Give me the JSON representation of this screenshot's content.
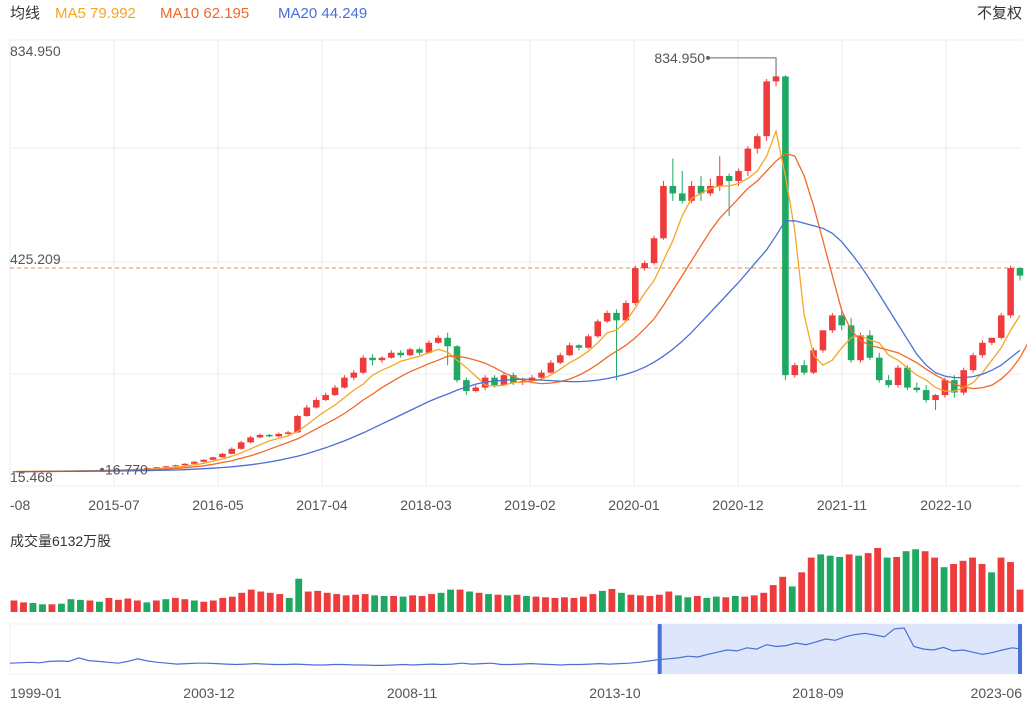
{
  "header": {
    "ma_title": "均线",
    "ma5": {
      "label": "MA5 79.992",
      "color": "#f5a623"
    },
    "ma10": {
      "label": "MA10 62.195",
      "color": "#f06a2a"
    },
    "ma20": {
      "label": "MA20 44.249",
      "color": "#4a70d8"
    },
    "adjust_label": "不复权"
  },
  "colors": {
    "up": "#ef3b3b",
    "down": "#1ea862",
    "ref_line": "#f08a3c",
    "grid": "#eeeeee",
    "nav_fill": "#dde6fb",
    "nav_line": "#4a70d8"
  },
  "chart_data": {
    "type": "candlestick",
    "price_axis": {
      "max_label": "834.950",
      "ref_label": "425.209",
      "ref_value": 425.209,
      "min_label": "15.468",
      "ylim": [
        15.468,
        834.95
      ]
    },
    "annotations": {
      "max_price": "834.950",
      "min_price": "16.770"
    },
    "x_ticks": [
      "-08",
      "2015-07",
      "2016-05",
      "2017-04",
      "2018-03",
      "2019-02",
      "2020-01",
      "2020-12",
      "2021-11",
      "2022-10"
    ],
    "candles": [
      [
        16,
        17,
        16,
        17
      ],
      [
        17,
        16.5,
        16.2,
        17.2
      ],
      [
        16.5,
        17,
        16.4,
        17.3
      ],
      [
        17,
        17.2,
        16.8,
        17.5
      ],
      [
        17.2,
        17.5,
        17,
        17.8
      ],
      [
        17.5,
        17.3,
        17,
        17.9
      ],
      [
        17.3,
        18,
        17.1,
        18.3
      ],
      [
        18,
        18.5,
        17.8,
        18.8
      ],
      [
        18.5,
        18.8,
        18.2,
        19.2
      ],
      [
        18.8,
        19.5,
        18.6,
        19.8
      ],
      [
        19.5,
        19.2,
        18.9,
        19.9
      ],
      [
        19.2,
        20,
        19,
        20.5
      ],
      [
        20,
        21,
        19.8,
        21.5
      ],
      [
        21,
        22,
        20.8,
        22.5
      ],
      [
        22,
        23.5,
        21.8,
        24
      ],
      [
        23.5,
        25,
        23,
        25.5
      ],
      [
        25,
        27,
        24.5,
        27.5
      ],
      [
        27,
        29,
        26.5,
        30
      ],
      [
        29,
        32,
        28.5,
        33
      ],
      [
        32,
        36,
        31.5,
        37
      ],
      [
        36,
        40,
        35,
        41
      ],
      [
        40,
        45,
        39,
        46
      ],
      [
        45,
        52,
        44,
        54
      ],
      [
        52,
        62,
        51,
        65
      ],
      [
        62,
        75,
        60,
        78
      ],
      [
        75,
        85,
        73,
        88
      ],
      [
        85,
        90,
        83,
        93
      ],
      [
        90,
        87,
        85,
        92
      ],
      [
        87,
        92,
        85,
        95
      ],
      [
        92,
        95,
        90,
        98
      ],
      [
        95,
        128,
        94,
        130
      ],
      [
        128,
        145,
        126,
        150
      ],
      [
        145,
        160,
        143,
        165
      ],
      [
        160,
        170,
        158,
        175
      ],
      [
        170,
        185,
        168,
        190
      ],
      [
        185,
        205,
        183,
        210
      ],
      [
        205,
        215,
        200,
        220
      ],
      [
        215,
        245,
        212,
        250
      ],
      [
        245,
        240,
        230,
        252
      ],
      [
        240,
        245,
        235,
        248
      ],
      [
        245,
        255,
        243,
        260
      ],
      [
        255,
        250,
        245,
        260
      ],
      [
        250,
        262,
        248,
        265
      ],
      [
        262,
        255,
        250,
        265
      ],
      [
        255,
        275,
        253,
        280
      ],
      [
        275,
        285,
        273,
        290
      ],
      [
        285,
        268,
        230,
        295
      ],
      [
        268,
        200,
        195,
        270
      ],
      [
        200,
        178,
        170,
        205
      ],
      [
        178,
        185,
        175,
        190
      ],
      [
        185,
        205,
        180,
        210
      ],
      [
        205,
        190,
        185,
        210
      ],
      [
        190,
        210,
        188,
        215
      ],
      [
        210,
        195,
        190,
        215
      ],
      [
        195,
        198,
        190,
        205
      ],
      [
        198,
        205,
        196,
        210
      ],
      [
        205,
        215,
        203,
        220
      ],
      [
        215,
        235,
        213,
        240
      ],
      [
        235,
        250,
        232,
        255
      ],
      [
        250,
        270,
        248,
        275
      ],
      [
        270,
        265,
        260,
        272
      ],
      [
        265,
        288,
        263,
        292
      ],
      [
        288,
        318,
        285,
        322
      ],
      [
        318,
        335,
        315,
        340
      ],
      [
        335,
        320,
        200,
        342
      ],
      [
        320,
        355,
        318,
        360
      ],
      [
        355,
        425,
        350,
        430
      ],
      [
        425,
        435,
        420,
        440
      ],
      [
        435,
        485,
        432,
        490
      ],
      [
        485,
        590,
        482,
        600
      ],
      [
        590,
        575,
        560,
        645
      ],
      [
        575,
        560,
        555,
        620
      ],
      [
        560,
        590,
        555,
        600
      ],
      [
        590,
        575,
        560,
        610
      ],
      [
        575,
        590,
        570,
        605
      ],
      [
        590,
        610,
        580,
        650
      ],
      [
        610,
        600,
        530,
        615
      ],
      [
        600,
        620,
        590,
        625
      ],
      [
        620,
        665,
        610,
        670
      ],
      [
        665,
        690,
        655,
        695
      ],
      [
        690,
        800,
        680,
        805
      ],
      [
        800,
        810,
        790,
        815
      ],
      [
        810,
        210,
        200,
        812
      ],
      [
        210,
        230,
        205,
        235
      ],
      [
        230,
        215,
        210,
        240
      ],
      [
        215,
        260,
        212,
        265
      ],
      [
        260,
        300,
        255,
        300
      ],
      [
        300,
        330,
        295,
        335
      ],
      [
        330,
        310,
        300,
        340
      ],
      [
        310,
        240,
        235,
        325
      ],
      [
        240,
        290,
        235,
        295
      ],
      [
        290,
        245,
        240,
        300
      ],
      [
        245,
        200,
        195,
        255
      ],
      [
        200,
        190,
        185,
        210
      ],
      [
        190,
        225,
        185,
        230
      ],
      [
        225,
        185,
        180,
        230
      ],
      [
        185,
        180,
        175,
        195
      ],
      [
        180,
        160,
        155,
        190
      ],
      [
        160,
        170,
        140,
        172
      ],
      [
        170,
        200,
        165,
        205
      ],
      [
        200,
        175,
        165,
        210
      ],
      [
        175,
        220,
        170,
        225
      ],
      [
        220,
        250,
        215,
        255
      ],
      [
        250,
        275,
        245,
        280
      ],
      [
        275,
        285,
        270,
        285
      ],
      [
        285,
        330,
        282,
        335
      ],
      [
        330,
        425,
        325,
        430
      ],
      [
        425,
        410,
        400,
        425
      ]
    ],
    "ma_series": {
      "MA5": [
        16.5,
        16.7,
        16.8,
        17,
        17.2,
        17.4,
        17.6,
        17.9,
        18.2,
        18.6,
        19,
        19.4,
        19.9,
        20.5,
        21.3,
        22.3,
        23.6,
        25,
        27,
        30,
        33,
        37,
        41.5,
        47,
        54,
        62,
        70,
        78,
        83,
        88,
        97,
        110,
        125,
        138,
        150,
        165,
        180,
        192,
        210,
        220,
        228,
        238,
        243,
        248,
        255,
        262,
        256,
        240,
        225,
        208,
        190,
        188,
        190,
        195,
        196,
        198,
        202,
        210,
        222,
        235,
        245,
        258,
        275,
        295,
        300,
        318,
        345,
        375,
        400,
        440,
        480,
        530,
        565,
        575,
        585,
        590,
        590,
        595,
        605,
        620,
        650,
        700,
        610,
        500,
        330,
        250,
        230,
        240,
        265,
        285,
        290,
        280,
        275,
        250,
        240,
        225,
        210,
        200,
        185,
        178,
        178,
        185,
        195,
        215,
        240,
        265,
        300,
        330
      ],
      "MA10": [
        16.3,
        16.4,
        16.5,
        16.7,
        16.9,
        17.1,
        17.3,
        17.5,
        17.7,
        18,
        18.3,
        18.6,
        19,
        19.5,
        20,
        20.7,
        21.5,
        22.5,
        24,
        26,
        28,
        31,
        34.5,
        38,
        43,
        48,
        54,
        61,
        68,
        75,
        82,
        92,
        102,
        112,
        122,
        133,
        146,
        160,
        172,
        185,
        196,
        207,
        217,
        225,
        233,
        240,
        248,
        248,
        245,
        240,
        234,
        225,
        215,
        207,
        200,
        195,
        193,
        194,
        197,
        202,
        210,
        220,
        232,
        246,
        258,
        270,
        285,
        303,
        323,
        350,
        380,
        410,
        440,
        470,
        500,
        525,
        545,
        565,
        585,
        600,
        620,
        640,
        655,
        650,
        610,
        550,
        480,
        410,
        340,
        300,
        280,
        270,
        265,
        260,
        255,
        245,
        235,
        222,
        210,
        200,
        192,
        186,
        183,
        185,
        190,
        202,
        220,
        245,
        280
      ],
      "MA20": [
        16.2,
        16.3,
        16.3,
        16.4,
        16.5,
        16.6,
        16.7,
        16.8,
        17,
        17.1,
        17.3,
        17.5,
        17.7,
        18,
        18.3,
        18.6,
        19,
        19.5,
        20,
        21,
        22,
        23.2,
        24.5,
        26,
        28,
        30,
        32.5,
        35.5,
        39,
        43,
        47,
        52,
        58,
        64,
        71,
        78,
        86,
        94,
        103,
        112,
        121,
        130,
        139,
        148,
        157,
        165,
        172,
        180,
        186,
        192,
        196,
        198,
        200,
        201,
        202,
        201,
        200,
        199,
        198,
        197,
        197,
        198,
        200,
        203,
        207,
        212,
        218,
        226,
        236,
        248,
        262,
        278,
        296,
        316,
        336,
        356,
        376,
        396,
        418,
        440,
        462,
        490,
        520,
        520,
        515,
        510,
        505,
        495,
        478,
        455,
        430,
        402,
        372,
        342,
        312,
        282,
        252,
        230,
        215,
        208,
        205,
        205,
        207,
        212,
        220,
        230,
        245,
        260
      ]
    },
    "volume": {
      "label": "成交量6132万股",
      "values": [
        [
          18,
          1
        ],
        [
          15,
          1
        ],
        [
          14,
          0
        ],
        [
          12,
          0
        ],
        [
          12,
          1
        ],
        [
          13,
          0
        ],
        [
          20,
          0
        ],
        [
          19,
          0
        ],
        [
          18,
          1
        ],
        [
          16,
          0
        ],
        [
          22,
          1
        ],
        [
          19,
          1
        ],
        [
          21,
          1
        ],
        [
          18,
          1
        ],
        [
          15,
          0
        ],
        [
          18,
          1
        ],
        [
          20,
          0
        ],
        [
          22,
          1
        ],
        [
          20,
          1
        ],
        [
          18,
          0
        ],
        [
          16,
          1
        ],
        [
          18,
          1
        ],
        [
          22,
          1
        ],
        [
          24,
          1
        ],
        [
          30,
          1
        ],
        [
          35,
          1
        ],
        [
          32,
          1
        ],
        [
          30,
          1
        ],
        [
          28,
          1
        ],
        [
          22,
          0
        ],
        [
          52,
          0
        ],
        [
          32,
          1
        ],
        [
          33,
          1
        ],
        [
          30,
          1
        ],
        [
          28,
          1
        ],
        [
          26,
          1
        ],
        [
          27,
          1
        ],
        [
          28,
          1
        ],
        [
          26,
          0
        ],
        [
          25,
          0
        ],
        [
          25,
          1
        ],
        [
          24,
          0
        ],
        [
          26,
          1
        ],
        [
          25,
          1
        ],
        [
          28,
          1
        ],
        [
          30,
          0
        ],
        [
          35,
          0
        ],
        [
          35,
          1
        ],
        [
          32,
          0
        ],
        [
          30,
          1
        ],
        [
          28,
          0
        ],
        [
          27,
          1
        ],
        [
          26,
          0
        ],
        [
          27,
          1
        ],
        [
          25,
          0
        ],
        [
          24,
          1
        ],
        [
          23,
          1
        ],
        [
          22,
          1
        ],
        [
          23,
          1
        ],
        [
          22,
          1
        ],
        [
          24,
          1
        ],
        [
          28,
          1
        ],
        [
          33,
          0
        ],
        [
          36,
          1
        ],
        [
          30,
          0
        ],
        [
          27,
          1
        ],
        [
          26,
          1
        ],
        [
          25,
          1
        ],
        [
          27,
          1
        ],
        [
          32,
          1
        ],
        [
          26,
          0
        ],
        [
          23,
          0
        ],
        [
          25,
          1
        ],
        [
          22,
          0
        ],
        [
          24,
          0
        ],
        [
          23,
          1
        ],
        [
          25,
          0
        ],
        [
          24,
          1
        ],
        [
          26,
          1
        ],
        [
          30,
          1
        ],
        [
          42,
          1
        ],
        [
          55,
          1
        ],
        [
          40,
          0
        ],
        [
          62,
          1
        ],
        [
          85,
          1
        ],
        [
          90,
          0
        ],
        [
          88,
          0
        ],
        [
          86,
          0
        ],
        [
          90,
          1
        ],
        [
          88,
          0
        ],
        [
          92,
          1
        ],
        [
          100,
          1
        ],
        [
          85,
          0
        ],
        [
          86,
          1
        ],
        [
          95,
          0
        ],
        [
          98,
          0
        ],
        [
          95,
          1
        ],
        [
          85,
          1
        ],
        [
          70,
          0
        ],
        [
          75,
          1
        ],
        [
          80,
          1
        ],
        [
          85,
          1
        ],
        [
          75,
          1
        ],
        [
          62,
          0
        ],
        [
          85,
          1
        ],
        [
          78,
          1
        ],
        [
          35,
          1
        ]
      ]
    },
    "navigator": {
      "x_labels": [
        "1999-01",
        "2003-12",
        "2008-11",
        "2013-10",
        "2018-09",
        "2023-06"
      ],
      "values": [
        0.2,
        0.21,
        0.22,
        0.21,
        0.24,
        0.25,
        0.24,
        0.32,
        0.26,
        0.24,
        0.22,
        0.2,
        0.24,
        0.3,
        0.25,
        0.22,
        0.2,
        0.18,
        0.19,
        0.2,
        0.2,
        0.19,
        0.18,
        0.17,
        0.18,
        0.19,
        0.18,
        0.17,
        0.17,
        0.18,
        0.17,
        0.16,
        0.16,
        0.17,
        0.17,
        0.16,
        0.16,
        0.15,
        0.15,
        0.16,
        0.17,
        0.16,
        0.17,
        0.18,
        0.17,
        0.18,
        0.2,
        0.18,
        0.19,
        0.2,
        0.17,
        0.17,
        0.18,
        0.19,
        0.18,
        0.17,
        0.16,
        0.17,
        0.17,
        0.18,
        0.19,
        0.18,
        0.19,
        0.2,
        0.22,
        0.25,
        0.28,
        0.3,
        0.32,
        0.36,
        0.34,
        0.4,
        0.45,
        0.5,
        0.48,
        0.55,
        0.52,
        0.62,
        0.58,
        0.6,
        0.66,
        0.62,
        0.68,
        0.75,
        0.72,
        0.8,
        0.85,
        0.88,
        0.84,
        0.8,
        0.98,
        1.0,
        0.58,
        0.52,
        0.5,
        0.56,
        0.48,
        0.5,
        0.45,
        0.4,
        0.44,
        0.5,
        0.55,
        0.52
      ],
      "selection": [
        0.64,
        1.0
      ]
    }
  }
}
